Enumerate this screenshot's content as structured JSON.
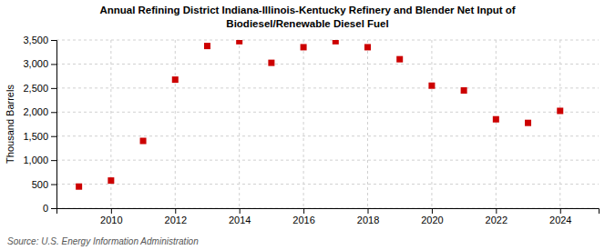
{
  "chart_data": {
    "type": "scatter",
    "title": [
      "Annual Refining District Indiana-Illinois-Kentucky Refinery and Blender Net Input of",
      "Biodiesel/Renewable Diesel Fuel"
    ],
    "ylabel": "Thousand Barrels",
    "annotations": [
      "Source: U.S. Energy Information Administration"
    ],
    "x": [
      2009,
      2010,
      2011,
      2012,
      2013,
      2014,
      2015,
      2016,
      2017,
      2018,
      2019,
      2020,
      2021,
      2022,
      2023,
      2024
    ],
    "values": [
      450,
      575,
      1400,
      2675,
      3375,
      3475,
      3025,
      3350,
      3475,
      3350,
      3100,
      2550,
      2450,
      1850,
      1775,
      2025
    ],
    "color": "#cc0000",
    "marker": "square",
    "xlim": [
      2008.3,
      2025.2
    ],
    "xticks": [
      2010,
      2012,
      2014,
      2016,
      2018,
      2020,
      2022,
      2024
    ],
    "ylim": [
      0,
      3500
    ],
    "yticks": [
      0,
      500,
      {
        "value": 1000,
        "label": "1,000"
      },
      {
        "value": 1500,
        "label": "1,500"
      },
      {
        "value": 2000,
        "label": "2,000"
      },
      {
        "value": 2500,
        "label": "2,500"
      },
      {
        "value": 3000,
        "label": "3,000"
      },
      {
        "value": 3500,
        "label": "3,500"
      }
    ],
    "grid": true
  }
}
